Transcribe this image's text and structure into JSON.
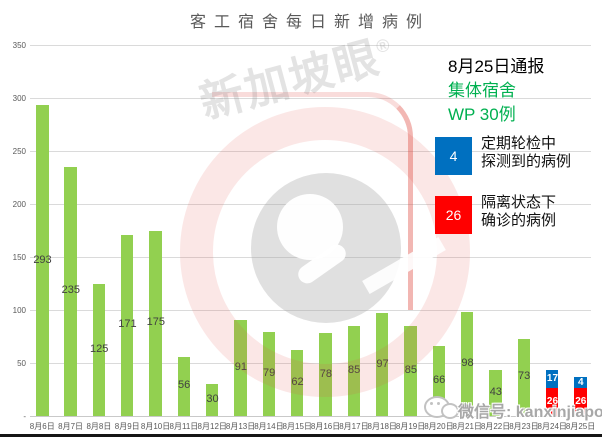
{
  "title": "客工宿舍每日新增病例",
  "legend": {
    "report_title": "8月25日通报",
    "subtitle_line1": "集体宿舍",
    "subtitle_line2": "WP 30例",
    "subtitle_color": "#00B050",
    "items": [
      {
        "value": "4",
        "color": "#0070C0",
        "label_line1": "定期轮检中",
        "label_line2": "探测到的病例"
      },
      {
        "value": "26",
        "color": "#FF0000",
        "label_line1": "隔离状态下",
        "label_line2": "确诊的病例"
      }
    ]
  },
  "watermark": {
    "logo_text": "新加坡眼",
    "registered_mark": "®",
    "wechat_label": "微信号: kanxinjiapo"
  },
  "chart_data": {
    "type": "bar",
    "stacked": true,
    "title": "客工宿舍每日新增病例",
    "xlabel": "",
    "ylabel": "",
    "ylim": [
      0,
      350
    ],
    "ytick_interval": 50,
    "grid": true,
    "colors": {
      "green": "#92D050",
      "blue": "#0070C0",
      "red": "#FF0000"
    },
    "y_axis": {
      "labels": [
        "350",
        "300",
        "250",
        "200",
        "150",
        "100",
        "50",
        "-"
      ],
      "values": [
        350,
        300,
        250,
        200,
        150,
        100,
        50,
        0
      ]
    },
    "categories": [
      "8月6日",
      "8月7日",
      "8月8日",
      "8月9日",
      "8月10日",
      "8月11日",
      "8月12日",
      "8月13日",
      "8月14日",
      "8月15日",
      "8月16日",
      "8月17日",
      "8月18日",
      "8月19日",
      "8月20日",
      "8月21日",
      "8月22日",
      "8月23日",
      "8月24日",
      "8月25日"
    ],
    "series_legend": [
      {
        "name": "定期轮检中探测到的病例",
        "color": "blue"
      },
      {
        "name": "隔离状态下确诊的病例",
        "color": "red"
      },
      {
        "name": "宿舍每日新增病例",
        "color": "green"
      }
    ],
    "bars": [
      {
        "category": "8月6日",
        "segments": [
          {
            "value": 293,
            "color": "green"
          }
        ]
      },
      {
        "category": "8月7日",
        "segments": [
          {
            "value": 235,
            "color": "green"
          }
        ]
      },
      {
        "category": "8月8日",
        "segments": [
          {
            "value": 125,
            "color": "green"
          }
        ]
      },
      {
        "category": "8月9日",
        "segments": [
          {
            "value": 171,
            "color": "green"
          }
        ]
      },
      {
        "category": "8月10日",
        "segments": [
          {
            "value": 175,
            "color": "green"
          }
        ]
      },
      {
        "category": "8月11日",
        "segments": [
          {
            "value": 56,
            "color": "green"
          }
        ]
      },
      {
        "category": "8月12日",
        "segments": [
          {
            "value": 30,
            "color": "green"
          }
        ]
      },
      {
        "category": "8月13日",
        "segments": [
          {
            "value": 91,
            "color": "green"
          }
        ]
      },
      {
        "category": "8月14日",
        "segments": [
          {
            "value": 79,
            "color": "green"
          }
        ]
      },
      {
        "category": "8月15日",
        "segments": [
          {
            "value": 62,
            "color": "green"
          }
        ]
      },
      {
        "category": "8月16日",
        "segments": [
          {
            "value": 78,
            "color": "green"
          }
        ]
      },
      {
        "category": "8月17日",
        "segments": [
          {
            "value": 85,
            "color": "green"
          }
        ]
      },
      {
        "category": "8月18日",
        "segments": [
          {
            "value": 97,
            "color": "green"
          }
        ]
      },
      {
        "category": "8月19日",
        "segments": [
          {
            "value": 85,
            "color": "green"
          }
        ]
      },
      {
        "category": "8月20日",
        "segments": [
          {
            "value": 66,
            "color": "green"
          }
        ]
      },
      {
        "category": "8月21日",
        "segments": [
          {
            "value": 98,
            "color": "green"
          }
        ]
      },
      {
        "category": "8月22日",
        "segments": [
          {
            "value": 43,
            "color": "green"
          }
        ]
      },
      {
        "category": "8月23日",
        "segments": [
          {
            "value": 73,
            "color": "green"
          }
        ]
      },
      {
        "category": "8月24日",
        "segments": [
          {
            "value": 17,
            "color": "blue"
          },
          {
            "value": 26,
            "color": "red"
          }
        ]
      },
      {
        "category": "8月25日",
        "segments": [
          {
            "value": 4,
            "color": "blue"
          },
          {
            "value": 26,
            "color": "red"
          }
        ]
      }
    ]
  }
}
